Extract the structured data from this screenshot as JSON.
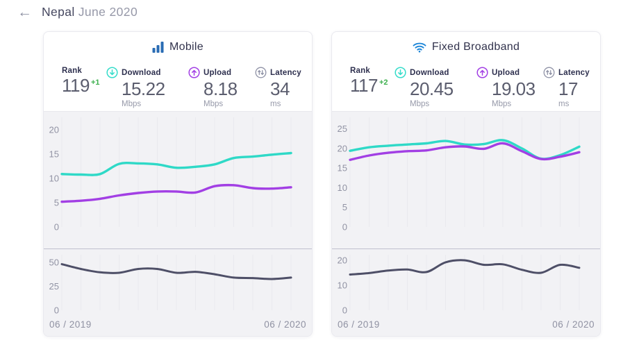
{
  "header": {
    "back": "←",
    "country": "Nepal",
    "period": "June 2020"
  },
  "colors": {
    "download_line": "#2fd9c7",
    "upload_line": "#a23fe4",
    "latency_line": "#4e4f67",
    "mobile_icon_blue": "#2a6cb4",
    "wifi_icon_blue": "#1d86d8",
    "rank_delta_green": "#3db04e"
  },
  "cards": [
    {
      "title": "Mobile",
      "stats": [
        {
          "label": "Rank",
          "value": "119",
          "delta": "+1"
        },
        {
          "label": "Download",
          "value": "15.22",
          "unit": "Mbps"
        },
        {
          "label": "Upload",
          "value": "8.18",
          "unit": "Mbps"
        },
        {
          "label": "Latency",
          "value": "34",
          "unit": "ms"
        }
      ],
      "x_start": "06 / 2019",
      "x_end": "06 / 2020"
    },
    {
      "title": "Fixed Broadband",
      "stats": [
        {
          "label": "Rank",
          "value": "117",
          "delta": "+2"
        },
        {
          "label": "Download",
          "value": "20.45",
          "unit": "Mbps"
        },
        {
          "label": "Upload",
          "value": "19.03",
          "unit": "Mbps"
        },
        {
          "label": "Latency",
          "value": "17",
          "unit": "ms"
        }
      ],
      "x_start": "06 / 2019",
      "x_end": "06 / 2020"
    }
  ],
  "chart_data": [
    {
      "id": "mobile-speed",
      "type": "line",
      "title": "Mobile download/upload speed, monthly 06/2019 - 06/2020",
      "x_start": "06 / 2019",
      "x_end": "06 / 2020",
      "yticks": [
        20,
        15,
        10,
        5,
        0
      ],
      "ylim": [
        0,
        20.3
      ],
      "grid": "vertical-faint",
      "series": [
        {
          "name": "Download (Mbps)",
          "color": "#2fd9c7",
          "values": [
            10.9,
            10.8,
            10.9,
            13.0,
            13.1,
            12.9,
            12.2,
            12.4,
            12.9,
            14.2,
            14.5,
            14.9,
            15.22
          ]
        },
        {
          "name": "Upload (Mbps)",
          "color": "#a23fe4",
          "values": [
            5.2,
            5.4,
            5.8,
            6.5,
            7.0,
            7.3,
            7.3,
            7.1,
            8.4,
            8.6,
            8.0,
            7.9,
            8.18
          ]
        }
      ]
    },
    {
      "id": "mobile-latency",
      "type": "line",
      "title": "Mobile latency, monthly 06/2019 - 06/2020",
      "x_start": "06 / 2019",
      "x_end": "06 / 2020",
      "yticks": [
        50,
        25,
        0
      ],
      "ylim": [
        0,
        52
      ],
      "grid": "vertical-faint",
      "series": [
        {
          "name": "Latency (ms)",
          "color": "#4e4f67",
          "values": [
            48,
            43,
            39.5,
            39,
            43,
            43,
            39,
            40,
            37.5,
            34,
            33.5,
            32.5,
            34
          ]
        }
      ]
    },
    {
      "id": "fixed-speed",
      "type": "line",
      "title": "Fixed broadband download/upload speed, monthly 06/2019 - 06/2020",
      "x_start": "06 / 2019",
      "x_end": "06 / 2020",
      "yticks": [
        25,
        20,
        15,
        10,
        5,
        0
      ],
      "ylim": [
        0,
        25.1
      ],
      "grid": "vertical-faint",
      "series": [
        {
          "name": "Download (Mbps)",
          "color": "#2fd9c7",
          "values": [
            19.4,
            20.3,
            20.7,
            21.0,
            21.3,
            21.9,
            21.0,
            21.1,
            22.1,
            20.0,
            17.4,
            18.3,
            20.45
          ]
        },
        {
          "name": "Upload (Mbps)",
          "color": "#a23fe4",
          "values": [
            17.1,
            18.2,
            18.9,
            19.3,
            19.5,
            20.3,
            20.5,
            19.9,
            21.3,
            19.3,
            17.3,
            17.9,
            19.03
          ]
        }
      ]
    },
    {
      "id": "fixed-latency",
      "type": "line",
      "title": "Fixed broadband latency, monthly 06/2019 - 06/2020",
      "x_start": "06 / 2019",
      "x_end": "06 / 2020",
      "yticks": [
        20,
        10,
        0
      ],
      "ylim": [
        0,
        20
      ],
      "grid": "vertical-faint",
      "series": [
        {
          "name": "Latency (ms)",
          "color": "#4e4f67",
          "values": [
            14.3,
            14.9,
            15.9,
            16.3,
            15.3,
            19.2,
            20.0,
            18.2,
            18.4,
            16.2,
            15.0,
            18.2,
            17.0
          ]
        }
      ]
    }
  ]
}
